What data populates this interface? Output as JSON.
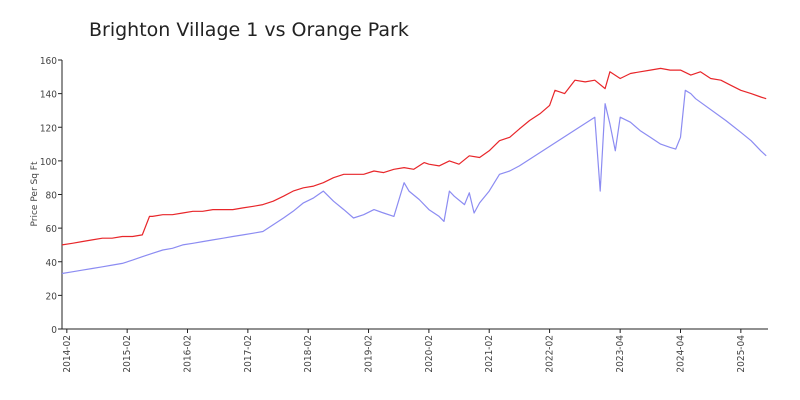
{
  "chart_data": {
    "type": "line",
    "title": "Brighton Village 1 vs Orange Park",
    "xlabel": "",
    "ylabel": "Price Per Sq Ft",
    "xlim": [
      2014.0,
      2025.7
    ],
    "ylim": [
      0,
      160
    ],
    "yticks": [
      0,
      20,
      40,
      60,
      80,
      100,
      120,
      140,
      160
    ],
    "xtick_labels": [
      "2014-02",
      "2015-02",
      "2016-02",
      "2017-02",
      "2018-02",
      "2019-02",
      "2020-02",
      "2021-02",
      "2022-02",
      "2023-04",
      "2024-04",
      "2025-04"
    ],
    "xtick_values": [
      2014.08,
      2015.08,
      2016.08,
      2017.08,
      2018.08,
      2019.08,
      2020.08,
      2021.08,
      2022.08,
      2023.25,
      2024.25,
      2025.25
    ],
    "grid": false,
    "legend": "none",
    "series": [
      {
        "color": "#e8262a",
        "x": [
          2014.0,
          2014.17,
          2014.33,
          2014.5,
          2014.67,
          2014.83,
          2015.0,
          2015.17,
          2015.33,
          2015.45,
          2015.5,
          2015.67,
          2015.83,
          2016.0,
          2016.17,
          2016.33,
          2016.5,
          2016.67,
          2016.83,
          2017.0,
          2017.17,
          2017.33,
          2017.5,
          2017.67,
          2017.83,
          2018.0,
          2018.17,
          2018.33,
          2018.5,
          2018.67,
          2018.83,
          2019.0,
          2019.17,
          2019.33,
          2019.5,
          2019.67,
          2019.83,
          2020.0,
          2020.08,
          2020.25,
          2020.42,
          2020.58,
          2020.75,
          2020.92,
          2021.08,
          2021.25,
          2021.42,
          2021.58,
          2021.75,
          2021.92,
          2022.08,
          2022.17,
          2022.33,
          2022.5,
          2022.67,
          2022.83,
          2023.0,
          2023.08,
          2023.25,
          2023.42,
          2023.58,
          2023.75,
          2023.92,
          2024.08,
          2024.25,
          2024.42,
          2024.58,
          2024.75,
          2024.92,
          2025.08,
          2025.25,
          2025.42,
          2025.58,
          2025.67
        ],
        "y": [
          50,
          51,
          52,
          53,
          54,
          54,
          55,
          55,
          56,
          67,
          67,
          68,
          68,
          69,
          70,
          70,
          71,
          71,
          71,
          72,
          73,
          74,
          76,
          79,
          82,
          84,
          85,
          87,
          90,
          92,
          92,
          92,
          94,
          93,
          95,
          96,
          95,
          99,
          98,
          97,
          100,
          98,
          103,
          102,
          106,
          112,
          114,
          119,
          124,
          128,
          133,
          142,
          140,
          148,
          147,
          148,
          143,
          153,
          149,
          152,
          153,
          154,
          155,
          154,
          154,
          151,
          153,
          149,
          148,
          145,
          142,
          140,
          138,
          137
        ]
      },
      {
        "color": "#8c8cf2",
        "x": [
          2014.0,
          2014.17,
          2014.33,
          2014.5,
          2014.67,
          2014.83,
          2015.0,
          2015.17,
          2015.33,
          2015.5,
          2015.67,
          2015.83,
          2016.0,
          2016.17,
          2016.33,
          2016.5,
          2016.67,
          2016.83,
          2017.0,
          2017.17,
          2017.33,
          2017.5,
          2017.67,
          2017.83,
          2018.0,
          2018.17,
          2018.33,
          2018.5,
          2018.67,
          2018.83,
          2019.0,
          2019.17,
          2019.33,
          2019.5,
          2019.67,
          2019.75,
          2019.92,
          2020.08,
          2020.25,
          2020.33,
          2020.42,
          2020.5,
          2020.67,
          2020.75,
          2020.83,
          2020.92,
          2021.08,
          2021.25,
          2021.42,
          2021.58,
          2022.83,
          2022.92,
          2023.0,
          2023.08,
          2023.17,
          2023.25,
          2023.42,
          2023.58,
          2023.75,
          2023.92,
          2024.08,
          2024.17,
          2024.25,
          2024.33,
          2024.42,
          2024.5,
          2025.0,
          2025.25,
          2025.42,
          2025.58,
          2025.67
        ],
        "y": [
          33,
          34,
          35,
          36,
          37,
          38,
          39,
          41,
          43,
          45,
          47,
          48,
          50,
          51,
          52,
          53,
          54,
          55,
          56,
          57,
          58,
          62,
          66,
          70,
          75,
          78,
          82,
          76,
          71,
          66,
          68,
          71,
          69,
          67,
          87,
          82,
          77,
          71,
          67,
          64,
          82,
          79,
          74,
          81,
          69,
          75,
          82,
          92,
          94,
          97,
          126,
          82,
          134,
          122,
          106,
          126,
          123,
          118,
          114,
          110,
          108,
          107,
          114,
          142,
          140,
          137,
          124,
          117,
          112,
          106,
          103
        ]
      }
    ]
  }
}
